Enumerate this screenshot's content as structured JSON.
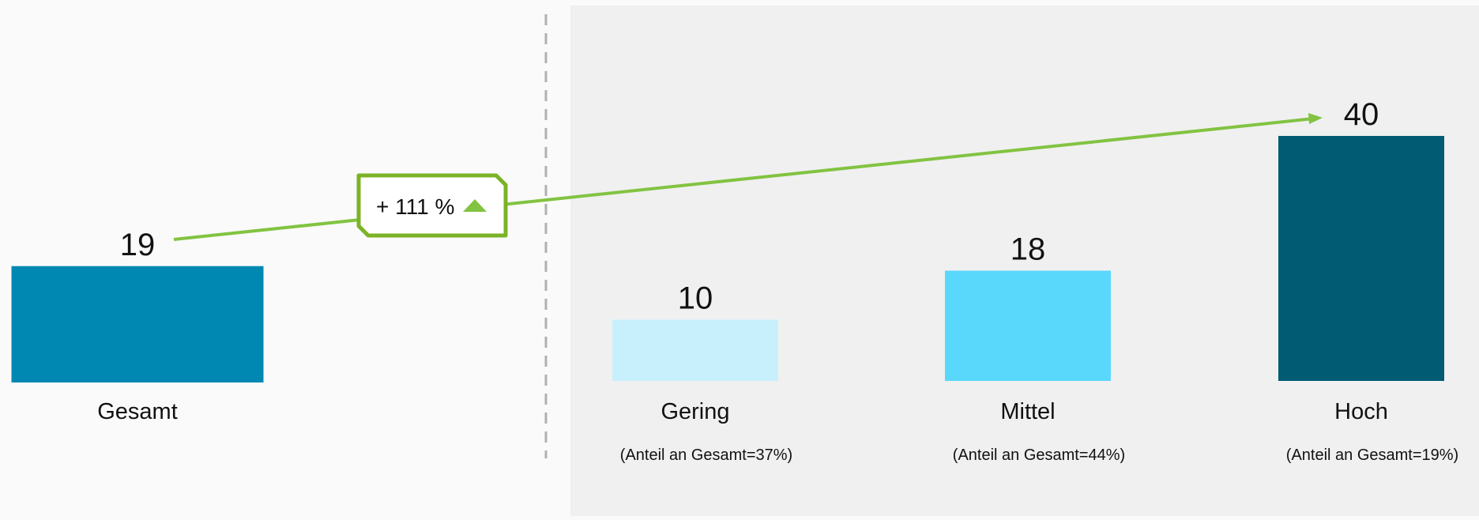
{
  "chart_data": {
    "type": "bar",
    "bars": [
      {
        "category": "Gesamt",
        "value": 19,
        "note": "",
        "color": "#0088b2"
      },
      {
        "category": "Gering",
        "value": 10,
        "note": "(Anteil an Gesamt=37%)",
        "color": "#c8f0fc"
      },
      {
        "category": "Mittel",
        "value": 18,
        "note": "(Anteil an Gesamt=44%)",
        "color": "#5ad8fc"
      },
      {
        "category": "Hoch",
        "value": 40,
        "note": "(Anteil an Gesamt=19%)",
        "color": "#005b73"
      }
    ],
    "annotation": {
      "text": "+ 111 %",
      "from": "Gesamt",
      "to": "Hoch",
      "direction": "up",
      "color": "#82c341",
      "border_color": "#7bb326"
    },
    "grid": false,
    "legend": "none"
  },
  "colors": {
    "page_background": "#fafafa",
    "panel_background": "#f0f0f0",
    "divider": "#b0b0b0",
    "text": "#111111"
  }
}
